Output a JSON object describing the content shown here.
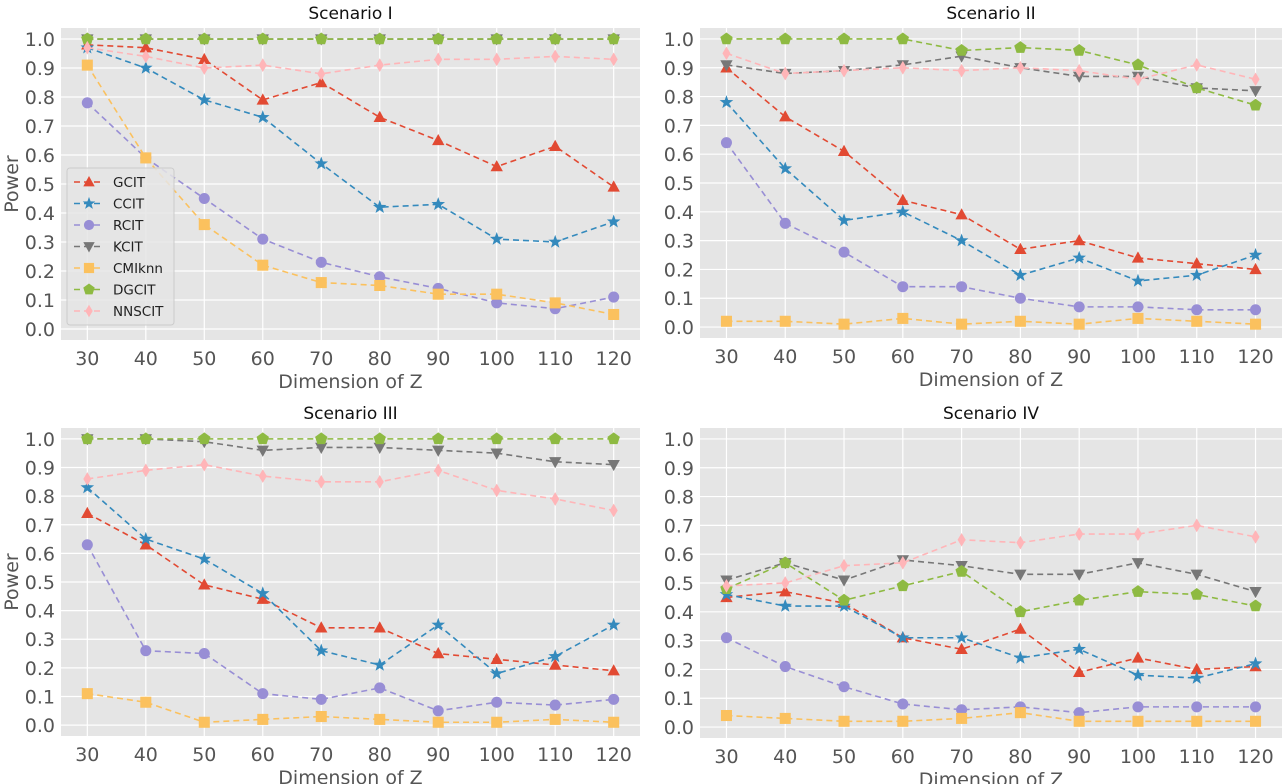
{
  "legend": {
    "entries": [
      "GCIT",
      "CCIT",
      "RCIT",
      "KCIT",
      "CMIknn",
      "DGCIT",
      "NNSCIT"
    ]
  },
  "series_styles": [
    {
      "name": "GCIT",
      "color": "#E24A33",
      "marker": "triangle-up"
    },
    {
      "name": "CCIT",
      "color": "#348ABD",
      "marker": "star"
    },
    {
      "name": "RCIT",
      "color": "#988ED5",
      "marker": "circle"
    },
    {
      "name": "KCIT",
      "color": "#777777",
      "marker": "triangle-down"
    },
    {
      "name": "CMIknn",
      "color": "#FBC15E",
      "marker": "square"
    },
    {
      "name": "DGCIT",
      "color": "#8EBA42",
      "marker": "pentagon"
    },
    {
      "name": "NNSCIT",
      "color": "#FFB5B8",
      "marker": "diamond"
    }
  ],
  "chart_data": [
    {
      "type": "line",
      "title": "Scenario I",
      "xlabel": "Dimension of Z",
      "ylabel": "Power",
      "x": [
        30,
        40,
        50,
        60,
        70,
        80,
        90,
        100,
        110,
        120
      ],
      "ylim": [
        0.0,
        1.0
      ],
      "yticks": [
        "0.0",
        "0.1",
        "0.2",
        "0.3",
        "0.4",
        "0.5",
        "0.6",
        "0.7",
        "0.8",
        "0.9",
        "1.0"
      ],
      "grid": true,
      "legend": "center-left",
      "series": [
        {
          "name": "GCIT",
          "values": [
            0.98,
            0.97,
            0.93,
            0.79,
            0.85,
            0.73,
            0.65,
            0.56,
            0.63,
            0.49
          ]
        },
        {
          "name": "CCIT",
          "values": [
            0.97,
            0.9,
            0.79,
            0.73,
            0.57,
            0.42,
            0.43,
            0.31,
            0.3,
            0.37
          ]
        },
        {
          "name": "RCIT",
          "values": [
            0.78,
            0.59,
            0.45,
            0.31,
            0.23,
            0.18,
            0.14,
            0.09,
            0.07,
            0.11
          ]
        },
        {
          "name": "KCIT",
          "values": [
            1.0,
            1.0,
            1.0,
            1.0,
            1.0,
            1.0,
            1.0,
            1.0,
            1.0,
            1.0
          ]
        },
        {
          "name": "CMIknn",
          "values": [
            0.91,
            0.59,
            0.36,
            0.22,
            0.16,
            0.15,
            0.12,
            0.12,
            0.09,
            0.05
          ]
        },
        {
          "name": "DGCIT",
          "values": [
            1.0,
            1.0,
            1.0,
            1.0,
            1.0,
            1.0,
            1.0,
            1.0,
            1.0,
            1.0
          ]
        },
        {
          "name": "NNSCIT",
          "values": [
            0.97,
            0.94,
            0.9,
            0.91,
            0.88,
            0.91,
            0.93,
            0.93,
            0.94,
            0.93
          ]
        }
      ]
    },
    {
      "type": "line",
      "title": "Scenario II",
      "xlabel": "Dimension of Z",
      "ylabel": "",
      "x": [
        30,
        40,
        50,
        60,
        70,
        80,
        90,
        100,
        110,
        120
      ],
      "ylim": [
        0.0,
        1.0
      ],
      "yticks": [
        "0.0",
        "0.1",
        "0.2",
        "0.3",
        "0.4",
        "0.5",
        "0.6",
        "0.7",
        "0.8",
        "0.9",
        "1.0"
      ],
      "grid": true,
      "series": [
        {
          "name": "GCIT",
          "values": [
            0.9,
            0.73,
            0.61,
            0.44,
            0.39,
            0.27,
            0.3,
            0.24,
            0.22,
            0.2
          ]
        },
        {
          "name": "CCIT",
          "values": [
            0.78,
            0.55,
            0.37,
            0.4,
            0.3,
            0.18,
            0.24,
            0.16,
            0.18,
            0.25
          ]
        },
        {
          "name": "RCIT",
          "values": [
            0.64,
            0.36,
            0.26,
            0.14,
            0.14,
            0.1,
            0.07,
            0.07,
            0.06,
            0.06
          ]
        },
        {
          "name": "KCIT",
          "values": [
            0.91,
            0.88,
            0.89,
            0.91,
            0.94,
            0.9,
            0.87,
            0.87,
            0.83,
            0.82
          ]
        },
        {
          "name": "CMIknn",
          "values": [
            0.02,
            0.02,
            0.01,
            0.03,
            0.01,
            0.02,
            0.01,
            0.03,
            0.02,
            0.01
          ]
        },
        {
          "name": "DGCIT",
          "values": [
            1.0,
            1.0,
            1.0,
            1.0,
            0.96,
            0.97,
            0.96,
            0.91,
            0.83,
            0.77
          ]
        },
        {
          "name": "NNSCIT",
          "values": [
            0.95,
            0.88,
            0.89,
            0.9,
            0.89,
            0.9,
            0.89,
            0.86,
            0.91,
            0.86
          ]
        }
      ]
    },
    {
      "type": "line",
      "title": "Scenario III",
      "xlabel": "Dimension of Z",
      "ylabel": "Power",
      "x": [
        30,
        40,
        50,
        60,
        70,
        80,
        90,
        100,
        110,
        120
      ],
      "ylim": [
        0.0,
        1.0
      ],
      "yticks": [
        "0.0",
        "0.1",
        "0.2",
        "0.3",
        "0.4",
        "0.5",
        "0.6",
        "0.7",
        "0.8",
        "0.9",
        "1.0"
      ],
      "grid": true,
      "series": [
        {
          "name": "GCIT",
          "values": [
            0.74,
            0.63,
            0.49,
            0.44,
            0.34,
            0.34,
            0.25,
            0.23,
            0.21,
            0.19
          ]
        },
        {
          "name": "CCIT",
          "values": [
            0.83,
            0.65,
            0.58,
            0.46,
            0.26,
            0.21,
            0.35,
            0.18,
            0.24,
            0.35
          ]
        },
        {
          "name": "RCIT",
          "values": [
            0.63,
            0.26,
            0.25,
            0.11,
            0.09,
            0.13,
            0.05,
            0.08,
            0.07,
            0.09
          ]
        },
        {
          "name": "KCIT",
          "values": [
            1.0,
            1.0,
            0.99,
            0.96,
            0.97,
            0.97,
            0.96,
            0.95,
            0.92,
            0.91
          ]
        },
        {
          "name": "CMIknn",
          "values": [
            0.11,
            0.08,
            0.01,
            0.02,
            0.03,
            0.02,
            0.01,
            0.01,
            0.02,
            0.01
          ]
        },
        {
          "name": "DGCIT",
          "values": [
            1.0,
            1.0,
            1.0,
            1.0,
            1.0,
            1.0,
            1.0,
            1.0,
            1.0,
            1.0
          ]
        },
        {
          "name": "NNSCIT",
          "values": [
            0.86,
            0.89,
            0.91,
            0.87,
            0.85,
            0.85,
            0.89,
            0.82,
            0.79,
            0.75
          ]
        }
      ]
    },
    {
      "type": "line",
      "title": "Scenario IV",
      "xlabel": "Dimension of Z",
      "ylabel": "",
      "x": [
        30,
        40,
        50,
        60,
        70,
        80,
        90,
        100,
        110,
        120
      ],
      "ylim": [
        0.0,
        1.0
      ],
      "yticks": [
        "0.0",
        "0.1",
        "0.2",
        "0.3",
        "0.4",
        "0.5",
        "0.6",
        "0.7",
        "0.8",
        "0.9",
        "1.0"
      ],
      "grid": true,
      "series": [
        {
          "name": "GCIT",
          "values": [
            0.45,
            0.47,
            0.43,
            0.31,
            0.27,
            0.34,
            0.19,
            0.24,
            0.2,
            0.21
          ]
        },
        {
          "name": "CCIT",
          "values": [
            0.46,
            0.42,
            0.42,
            0.31,
            0.31,
            0.24,
            0.27,
            0.18,
            0.17,
            0.22
          ]
        },
        {
          "name": "RCIT",
          "values": [
            0.31,
            0.21,
            0.14,
            0.08,
            0.06,
            0.07,
            0.05,
            0.07,
            0.07,
            0.07
          ]
        },
        {
          "name": "KCIT",
          "values": [
            0.51,
            0.57,
            0.51,
            0.58,
            0.56,
            0.53,
            0.53,
            0.57,
            0.53,
            0.47
          ]
        },
        {
          "name": "CMIknn",
          "values": [
            0.04,
            0.03,
            0.02,
            0.02,
            0.03,
            0.05,
            0.02,
            0.02,
            0.02,
            0.02
          ]
        },
        {
          "name": "DGCIT",
          "values": [
            0.48,
            0.57,
            0.44,
            0.49,
            0.54,
            0.4,
            0.44,
            0.47,
            0.46,
            0.42
          ]
        },
        {
          "name": "NNSCIT",
          "values": [
            0.49,
            0.5,
            0.56,
            0.57,
            0.65,
            0.64,
            0.67,
            0.67,
            0.7,
            0.66
          ]
        }
      ]
    }
  ]
}
